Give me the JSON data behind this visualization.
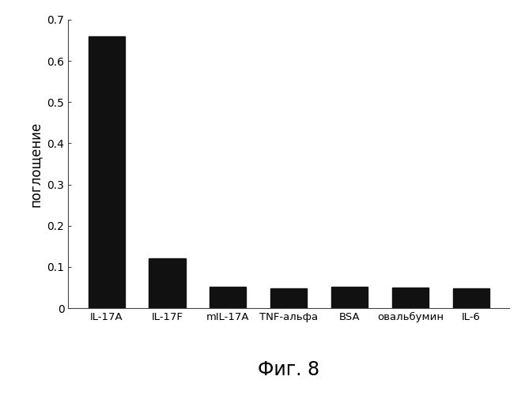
{
  "categories": [
    "IL-17A",
    "IL-17F",
    "mIL-17A",
    "TNF-альфа",
    "BSA",
    "овальбумин",
    "IL-6"
  ],
  "values": [
    0.66,
    0.12,
    0.052,
    0.048,
    0.052,
    0.05,
    0.048
  ],
  "bar_color": "#111111",
  "ylabel": "поглощение",
  "ylim": [
    0,
    0.7
  ],
  "yticks": [
    0,
    0.1,
    0.2,
    0.3,
    0.4,
    0.5,
    0.6,
    0.7
  ],
  "title": "Фиг. 8",
  "background_color": "#ffffff",
  "title_fontsize": 17,
  "ylabel_fontsize": 12,
  "tick_fontsize": 10,
  "xlabel_fontsize": 9.5
}
